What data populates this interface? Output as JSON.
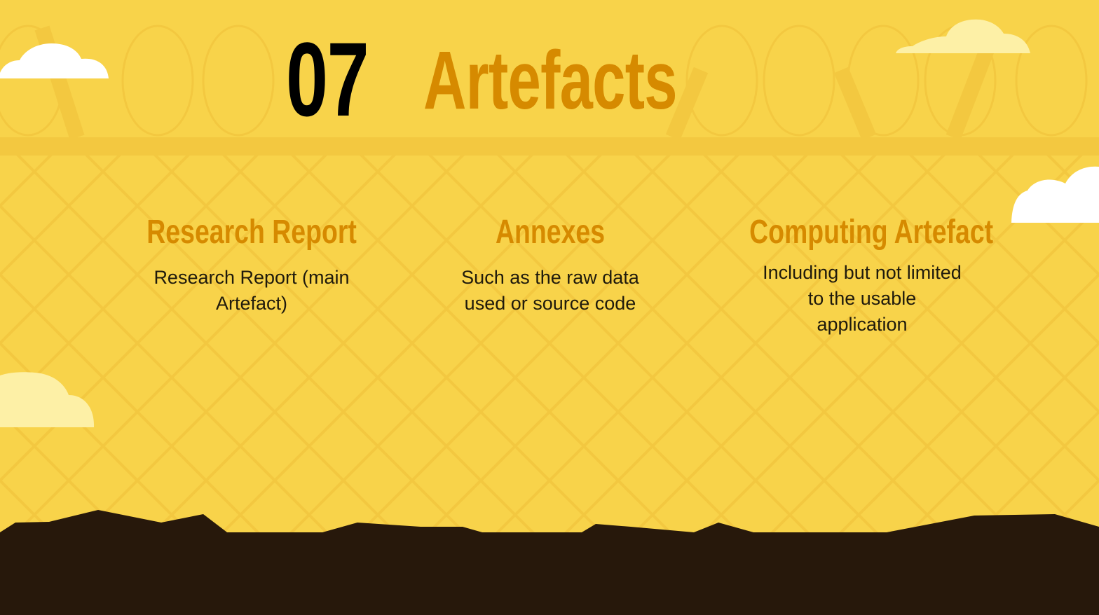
{
  "slide": {
    "number": "07",
    "title": "Artefacts"
  },
  "columns": [
    {
      "heading": "Research Report",
      "body": "Research Report (main Artefact)"
    },
    {
      "heading": "Annexes",
      "body": "Such as the raw data used or source code"
    },
    {
      "heading": "Computing Artefact",
      "body": "Including but not limited to the usable application"
    }
  ],
  "colors": {
    "background": "#f8d34a",
    "accent": "#d68a00",
    "ground": "#27180b",
    "cloud_white": "#ffffff",
    "cloud_cream": "#fdf0a6"
  }
}
